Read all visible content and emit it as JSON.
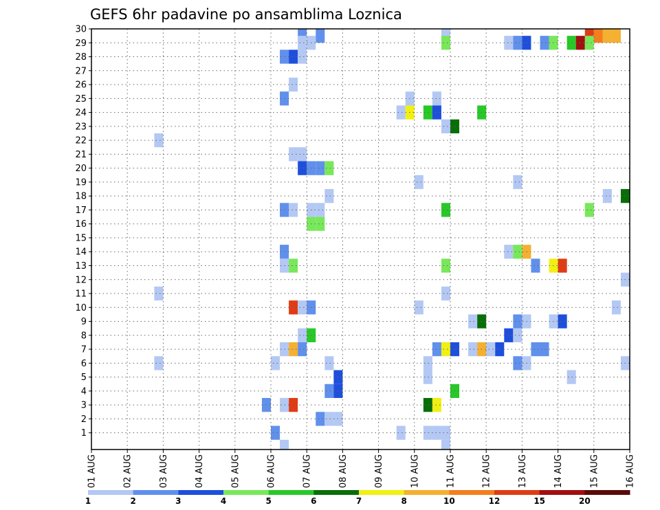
{
  "chart_data": {
    "type": "heatmap",
    "title": "GEFS 6hr padavine po ansamblima Loznica",
    "xlabel": "",
    "ylabel": "",
    "x_tick_labels": [
      "01 AUG",
      "02 AUG",
      "03 AUG",
      "04 AUG",
      "05 AUG",
      "06 AUG",
      "07 AUG",
      "08 AUG",
      "09 AUG",
      "10 AUG",
      "11 AUG",
      "12 AUG",
      "13 AUG",
      "14 AUG",
      "15 AUG",
      "16 AUG"
    ],
    "y_tick_labels": [
      "1",
      "2",
      "3",
      "4",
      "5",
      "6",
      "7",
      "8",
      "9",
      "10",
      "11",
      "12",
      "13",
      "14",
      "15",
      "16",
      "17",
      "18",
      "19",
      "20",
      "21",
      "22",
      "23",
      "24",
      "25",
      "26",
      "27",
      "28",
      "29",
      "30"
    ],
    "x_range_days": [
      0,
      15
    ],
    "y_range": [
      0,
      30
    ],
    "grid": "dotted",
    "legend": {
      "placement": "bottom",
      "labels": [
        "1",
        "2",
        "3",
        "4",
        "5",
        "6",
        "7",
        "8",
        "10",
        "12",
        "15",
        "20"
      ],
      "colors": [
        "#b4c8f4",
        "#6090ec",
        "#1e4fdc",
        "#78e85a",
        "#28c828",
        "#086e08",
        "#f0f014",
        "#f4b030",
        "#f47e1e",
        "#e03c14",
        "#a01010",
        "#5a0a0a"
      ]
    },
    "cells": [
      {
        "t": 5.75,
        "m": 30,
        "c": 2
      },
      {
        "t": 6.25,
        "m": 30,
        "c": 2
      },
      {
        "t": 9.75,
        "m": 30,
        "c": 1
      },
      {
        "t": 13.75,
        "m": 30,
        "c": 10
      },
      {
        "t": 14,
        "m": 30,
        "c": 9
      },
      {
        "t": 14.25,
        "m": 30,
        "c": 8
      },
      {
        "t": 14.5,
        "m": 30,
        "c": 8
      },
      {
        "t": 5.75,
        "m": 29,
        "c": 1
      },
      {
        "t": 6,
        "m": 29,
        "c": 1
      },
      {
        "t": 9.75,
        "m": 29,
        "c": 4
      },
      {
        "t": 11.5,
        "m": 29,
        "c": 1
      },
      {
        "t": 11.75,
        "m": 29,
        "c": 2
      },
      {
        "t": 12,
        "m": 29,
        "c": 3
      },
      {
        "t": 12.5,
        "m": 29,
        "c": 2
      },
      {
        "t": 12.75,
        "m": 29,
        "c": 4
      },
      {
        "t": 13.25,
        "m": 29,
        "c": 5
      },
      {
        "t": 13.5,
        "m": 29,
        "c": 11
      },
      {
        "t": 13.75,
        "m": 29,
        "c": 4
      },
      {
        "t": 5.25,
        "m": 28,
        "c": 2
      },
      {
        "t": 5.5,
        "m": 28,
        "c": 3
      },
      {
        "t": 5.75,
        "m": 28,
        "c": 1
      },
      {
        "t": 5.5,
        "m": 26,
        "c": 1
      },
      {
        "t": 5.25,
        "m": 25,
        "c": 2
      },
      {
        "t": 8.75,
        "m": 25,
        "c": 1
      },
      {
        "t": 9.5,
        "m": 25,
        "c": 1
      },
      {
        "t": 8.5,
        "m": 24,
        "c": 1
      },
      {
        "t": 8.75,
        "m": 24,
        "c": 7
      },
      {
        "t": 9.25,
        "m": 24,
        "c": 5
      },
      {
        "t": 9.5,
        "m": 24,
        "c": 3
      },
      {
        "t": 10.75,
        "m": 24,
        "c": 5
      },
      {
        "t": 9.75,
        "m": 23,
        "c": 1
      },
      {
        "t": 10,
        "m": 23,
        "c": 6
      },
      {
        "t": 1.75,
        "m": 22,
        "c": 1
      },
      {
        "t": 5.5,
        "m": 21,
        "c": 1
      },
      {
        "t": 5.75,
        "m": 21,
        "c": 1
      },
      {
        "t": 5.75,
        "m": 20,
        "c": 3
      },
      {
        "t": 6,
        "m": 20,
        "c": 2
      },
      {
        "t": 6.25,
        "m": 20,
        "c": 2
      },
      {
        "t": 6.5,
        "m": 20,
        "c": 4
      },
      {
        "t": 9,
        "m": 19,
        "c": 1
      },
      {
        "t": 11.75,
        "m": 19,
        "c": 1
      },
      {
        "t": 6.5,
        "m": 18,
        "c": 1
      },
      {
        "t": 14.25,
        "m": 18,
        "c": 1
      },
      {
        "t": 14.75,
        "m": 18,
        "c": 6
      },
      {
        "t": 15,
        "m": 18,
        "c": 6
      },
      {
        "t": 5.25,
        "m": 17,
        "c": 2
      },
      {
        "t": 5.5,
        "m": 17,
        "c": 1
      },
      {
        "t": 6,
        "m": 17,
        "c": 1
      },
      {
        "t": 6.25,
        "m": 17,
        "c": 1
      },
      {
        "t": 9.75,
        "m": 17,
        "c": 5
      },
      {
        "t": 13.75,
        "m": 17,
        "c": 4
      },
      {
        "t": 6,
        "m": 16,
        "c": 4
      },
      {
        "t": 6.25,
        "m": 16,
        "c": 4
      },
      {
        "t": 5.25,
        "m": 14,
        "c": 2
      },
      {
        "t": 11.5,
        "m": 14,
        "c": 1
      },
      {
        "t": 11.75,
        "m": 14,
        "c": 4
      },
      {
        "t": 12,
        "m": 14,
        "c": 8
      },
      {
        "t": 5.25,
        "m": 13,
        "c": 1
      },
      {
        "t": 5.5,
        "m": 13,
        "c": 4
      },
      {
        "t": 9.75,
        "m": 13,
        "c": 4
      },
      {
        "t": 12.25,
        "m": 13,
        "c": 2
      },
      {
        "t": 12.75,
        "m": 13,
        "c": 7
      },
      {
        "t": 13,
        "m": 13,
        "c": 10
      },
      {
        "t": 14.75,
        "m": 12,
        "c": 1
      },
      {
        "t": 1.75,
        "m": 11,
        "c": 1
      },
      {
        "t": 9.75,
        "m": 11,
        "c": 1
      },
      {
        "t": 5.5,
        "m": 10,
        "c": 10
      },
      {
        "t": 5.75,
        "m": 10,
        "c": 1
      },
      {
        "t": 6,
        "m": 10,
        "c": 2
      },
      {
        "t": 9,
        "m": 10,
        "c": 1
      },
      {
        "t": 14.5,
        "m": 10,
        "c": 1
      },
      {
        "t": 10.5,
        "m": 9,
        "c": 1
      },
      {
        "t": 10.75,
        "m": 9,
        "c": 6
      },
      {
        "t": 11.75,
        "m": 9,
        "c": 2
      },
      {
        "t": 12,
        "m": 9,
        "c": 1
      },
      {
        "t": 12.75,
        "m": 9,
        "c": 1
      },
      {
        "t": 13,
        "m": 9,
        "c": 3
      },
      {
        "t": 5.75,
        "m": 8,
        "c": 1
      },
      {
        "t": 6,
        "m": 8,
        "c": 5
      },
      {
        "t": 11.5,
        "m": 8,
        "c": 3
      },
      {
        "t": 11.75,
        "m": 8,
        "c": 1
      },
      {
        "t": 5.25,
        "m": 7,
        "c": 1
      },
      {
        "t": 5.5,
        "m": 7,
        "c": 8
      },
      {
        "t": 5.75,
        "m": 7,
        "c": 2
      },
      {
        "t": 9.5,
        "m": 7,
        "c": 2
      },
      {
        "t": 9.75,
        "m": 7,
        "c": 7
      },
      {
        "t": 10,
        "m": 7,
        "c": 3
      },
      {
        "t": 10.5,
        "m": 7,
        "c": 1
      },
      {
        "t": 10.75,
        "m": 7,
        "c": 8
      },
      {
        "t": 11,
        "m": 7,
        "c": 1
      },
      {
        "t": 11.25,
        "m": 7,
        "c": 3
      },
      {
        "t": 12.25,
        "m": 7,
        "c": 2
      },
      {
        "t": 12.5,
        "m": 7,
        "c": 2
      },
      {
        "t": 1.75,
        "m": 6,
        "c": 1
      },
      {
        "t": 5,
        "m": 6,
        "c": 1
      },
      {
        "t": 6.5,
        "m": 6,
        "c": 1
      },
      {
        "t": 9.25,
        "m": 6,
        "c": 1
      },
      {
        "t": 11.75,
        "m": 6,
        "c": 2
      },
      {
        "t": 12,
        "m": 6,
        "c": 1
      },
      {
        "t": 14.75,
        "m": 6,
        "c": 1
      },
      {
        "t": 6.75,
        "m": 5,
        "c": 3
      },
      {
        "t": 9.25,
        "m": 5,
        "c": 1
      },
      {
        "t": 13.25,
        "m": 5,
        "c": 1
      },
      {
        "t": 6.5,
        "m": 4,
        "c": 2
      },
      {
        "t": 6.75,
        "m": 4,
        "c": 3
      },
      {
        "t": 10,
        "m": 4,
        "c": 5
      },
      {
        "t": 4.75,
        "m": 3,
        "c": 2
      },
      {
        "t": 5.25,
        "m": 3,
        "c": 1
      },
      {
        "t": 5.5,
        "m": 3,
        "c": 10
      },
      {
        "t": 9.25,
        "m": 3,
        "c": 6
      },
      {
        "t": 9.5,
        "m": 3,
        "c": 7
      },
      {
        "t": 6.25,
        "m": 2,
        "c": 2
      },
      {
        "t": 6.5,
        "m": 2,
        "c": 1
      },
      {
        "t": 6.75,
        "m": 2,
        "c": 1
      },
      {
        "t": 5,
        "m": 1,
        "c": 2
      },
      {
        "t": 8.5,
        "m": 1,
        "c": 1
      },
      {
        "t": 9.25,
        "m": 1,
        "c": 1
      },
      {
        "t": 9.5,
        "m": 1,
        "c": 1
      },
      {
        "t": 9.75,
        "m": 1,
        "c": 1
      },
      {
        "t": 5.25,
        "m": 0,
        "c": 1
      },
      {
        "t": 9.75,
        "m": 0,
        "c": 1
      }
    ]
  }
}
